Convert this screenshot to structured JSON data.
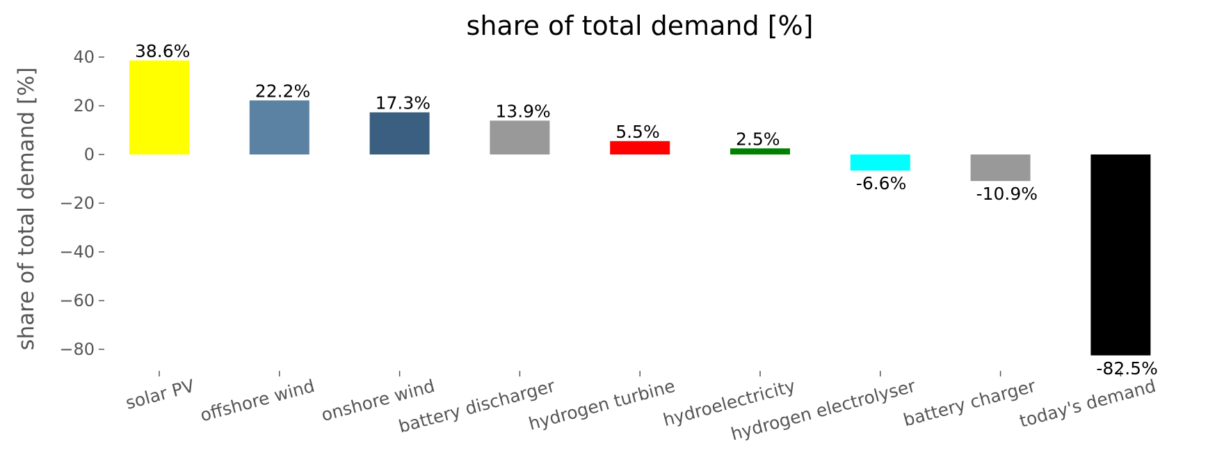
{
  "chart_data": {
    "type": "bar",
    "title": "share of total demand [%]",
    "ylabel": "share of total demand [%]",
    "xlabel": "",
    "ylim": [
      -90,
      45
    ],
    "yticks": [
      40,
      20,
      0,
      -20,
      -40,
      -60,
      -80
    ],
    "ytick_labels": [
      "40",
      "20",
      "0",
      "−20",
      "−40",
      "−60",
      "−80"
    ],
    "grid": false,
    "categories": [
      "solar PV",
      "offshore wind",
      "onshore wind",
      "battery discharger",
      "hydrogen turbine",
      "hydroelectricity",
      "hydrogen electrolyser",
      "battery charger",
      "today's demand"
    ],
    "values": [
      38.6,
      22.2,
      17.3,
      13.9,
      5.5,
      2.5,
      -6.6,
      -10.9,
      -82.5
    ],
    "data_labels": [
      "38.6%",
      "22.2%",
      "17.3%",
      "13.9%",
      "5.5%",
      "2.5%",
      "-6.6%",
      "-10.9%",
      "-82.5%"
    ],
    "colors": [
      "#ffff00",
      "#5c82a3",
      "#3a5f80",
      "#999999",
      "#ff0000",
      "#008000",
      "#00ffff",
      "#999999",
      "#000000"
    ]
  }
}
